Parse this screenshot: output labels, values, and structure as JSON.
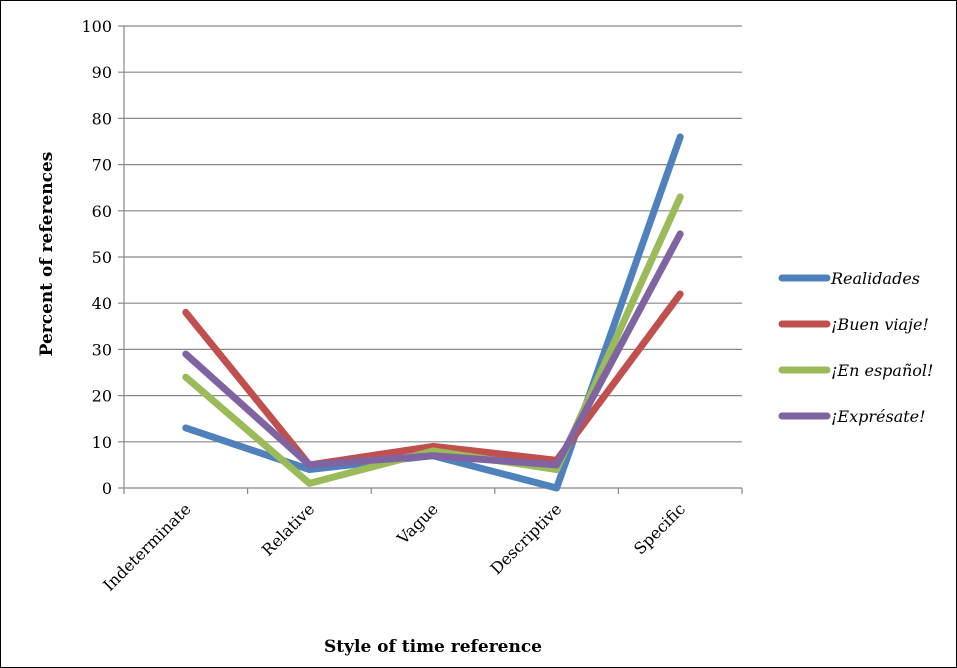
{
  "chart_data": {
    "type": "line",
    "categories": [
      "Indeterminate",
      "Relative",
      "Vague",
      "Descriptive",
      "Specific"
    ],
    "series": [
      {
        "name": "Realidades",
        "color": "#4f81bd",
        "values": [
          13,
          4,
          7,
          0,
          76
        ]
      },
      {
        "name": "¡Buen viaje!",
        "color": "#c0504d",
        "values": [
          38,
          5,
          9,
          6,
          42
        ]
      },
      {
        "name": "¡En español!",
        "color": "#9bbb59",
        "values": [
          24,
          1,
          8,
          4,
          63
        ]
      },
      {
        "name": "¡Exprésate!",
        "color": "#8064a2",
        "values": [
          29,
          5,
          7,
          5,
          55
        ]
      }
    ],
    "title": "",
    "xlabel": "Style of time reference",
    "ylabel": "Percent of references",
    "ylim": [
      0,
      100
    ],
    "yticks": [
      0,
      10,
      20,
      30,
      40,
      50,
      60,
      70,
      80,
      90,
      100
    ],
    "grid": true,
    "legend": "right"
  }
}
